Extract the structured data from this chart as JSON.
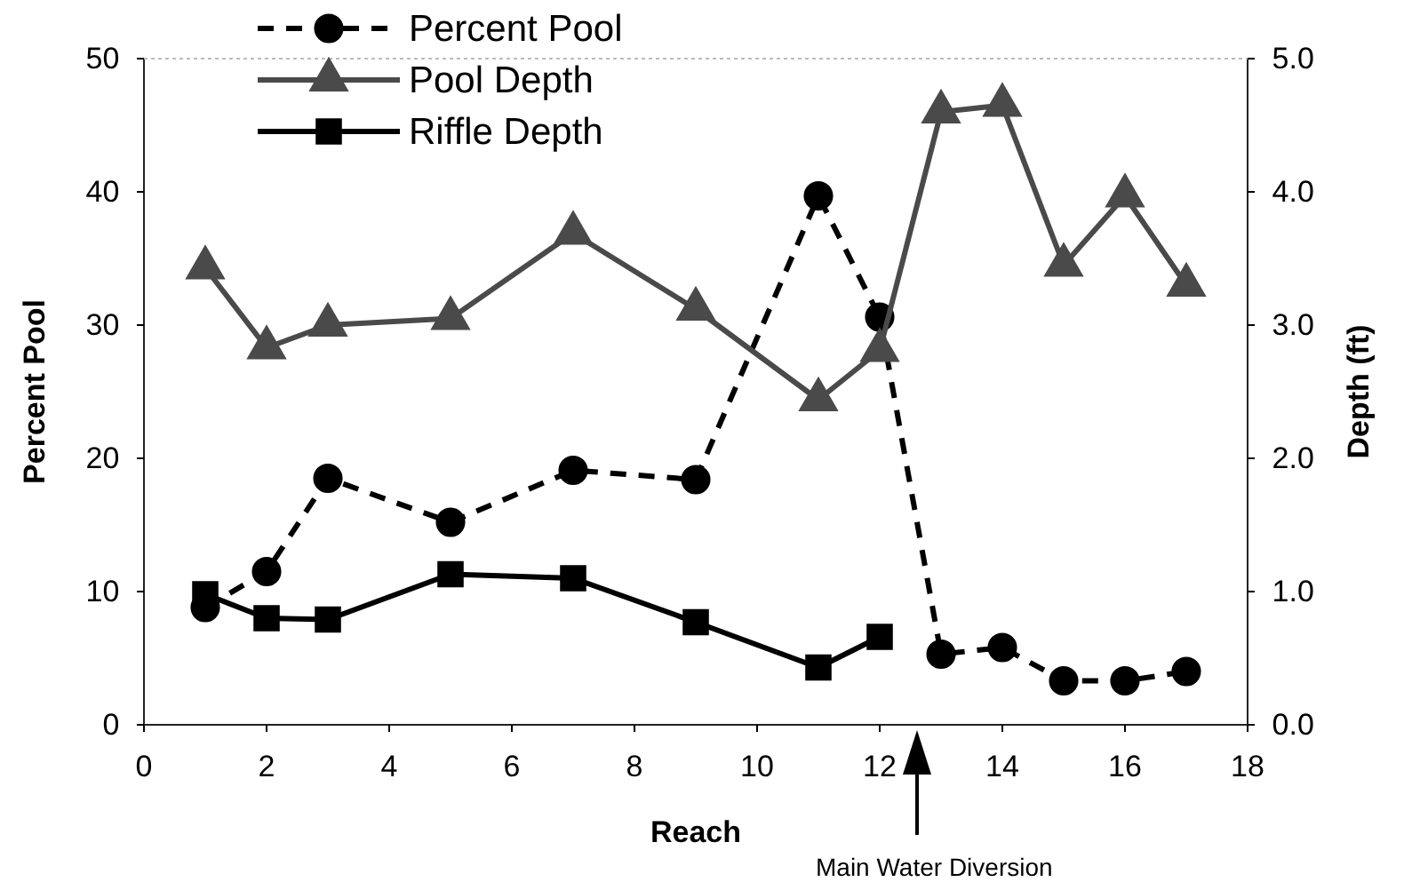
{
  "chart_data": {
    "type": "line",
    "xlabel": "Reach",
    "ylabel": "Percent Pool",
    "y2label": "Depth (ft)",
    "xlim": [
      0,
      18
    ],
    "xticks": [
      0,
      2,
      4,
      6,
      8,
      10,
      12,
      14,
      16,
      18
    ],
    "ylim": [
      0,
      50
    ],
    "yticks": [
      0,
      10,
      20,
      30,
      40,
      50
    ],
    "y2lim": [
      0,
      5
    ],
    "y2ticks": [
      {
        "value": 0,
        "label": "0.0"
      },
      {
        "value": 1,
        "label": "1.0"
      },
      {
        "value": 2,
        "label": "2.0"
      },
      {
        "value": 3,
        "label": "3.0"
      },
      {
        "value": 4,
        "label": "4.0"
      },
      {
        "value": 5,
        "label": "5.0"
      }
    ],
    "grid": false,
    "legend": "top left",
    "series": [
      {
        "name": "Percent Pool",
        "color": "#000000",
        "marker": "circle",
        "line_style": "dashed",
        "x": [
          1,
          2,
          3,
          5,
          7,
          9,
          11,
          12,
          13,
          14,
          15,
          16,
          17
        ],
        "values": [
          8.8,
          11.5,
          18.5,
          15.2,
          19.1,
          18.4,
          39.7,
          30.6,
          5.3,
          5.8,
          3.3,
          3.3,
          4.0
        ]
      },
      {
        "name": "Pool Depth",
        "color": "#4a4a4a",
        "marker": "triangle",
        "line_style": "solid",
        "axis": "y2",
        "x": [
          1,
          2,
          3,
          5,
          7,
          9,
          11,
          12,
          13,
          14,
          15,
          16,
          17
        ],
        "values": [
          3.43,
          2.83,
          3.0,
          3.05,
          3.69,
          3.12,
          2.44,
          2.81,
          4.6,
          4.65,
          3.45,
          3.97,
          3.3
        ]
      },
      {
        "name": "Riffle Depth",
        "color": "#000000",
        "marker": "square",
        "line_style": "solid",
        "axis": "y2",
        "x": [
          1,
          2,
          3,
          5,
          7,
          9,
          11,
          12
        ],
        "values": [
          0.98,
          0.8,
          0.79,
          1.13,
          1.1,
          0.77,
          0.43,
          0.66
        ]
      }
    ],
    "annotations": [
      "Main Water Diversion"
    ]
  }
}
